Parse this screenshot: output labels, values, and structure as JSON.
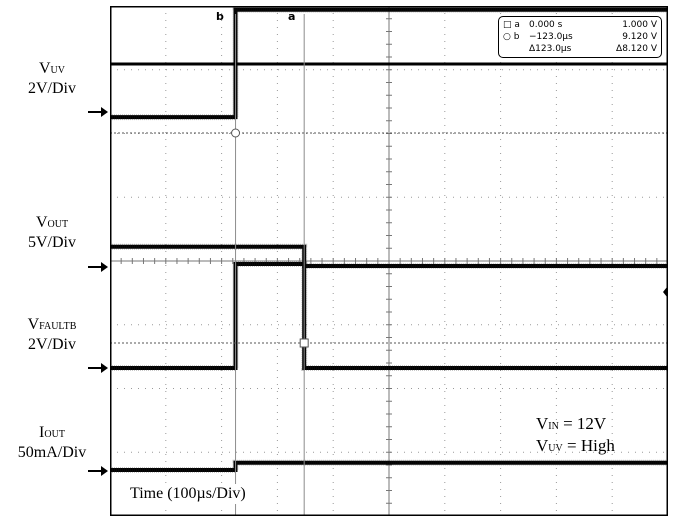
{
  "chart_data": {
    "type": "line",
    "title": "",
    "time_label": "Time (100µs/Div)",
    "x_unit": "µs",
    "x_per_div": 100,
    "xlim": [
      -225,
      775
    ],
    "y_divisions": 8,
    "grid": true,
    "channels": [
      {
        "name": "VUV",
        "name_main": "V",
        "name_sub": "UV",
        "scale": "2V/Div",
        "points": [
          [
            -225,
            1.7
          ],
          [
            0,
            1.7
          ],
          [
            0,
            4.6
          ],
          [
            775,
            4.6
          ]
        ]
      },
      {
        "name": "VOUT",
        "name_main": "V",
        "name_sub": "OUT",
        "scale": "5V/Div",
        "points": [
          [
            -225,
            1.2
          ],
          [
            123,
            1.2
          ],
          [
            123,
            0
          ],
          [
            775,
            0
          ]
        ]
      },
      {
        "name": "VFAULTB",
        "name_main": "V",
        "name_sub": "FAULTB",
        "scale": "2V/Div",
        "points": [
          [
            -225,
            0
          ],
          [
            0,
            0
          ],
          [
            0,
            5.2
          ],
          [
            123,
            5.2
          ],
          [
            123,
            0
          ],
          [
            775,
            0
          ]
        ]
      },
      {
        "name": "IOUT",
        "name_main": "I",
        "name_sub": "OUT",
        "scale": "50mA/Div",
        "points": [
          [
            -225,
            0
          ],
          [
            0,
            0
          ],
          [
            0,
            0.12
          ],
          [
            775,
            0.12
          ]
        ]
      }
    ],
    "cursor_labels": [
      "b",
      "a"
    ],
    "readout": {
      "rows": [
        {
          "cursor": "□ a",
          "time": "0.000 s",
          "value": "1.000 V"
        },
        {
          "cursor": "○ b",
          "time": "−123.0µs",
          "value": "9.120 V"
        },
        {
          "cursor": "",
          "time": "Δ123.0µs",
          "value": "Δ8.120 V"
        }
      ]
    },
    "conditions": [
      {
        "main": "V",
        "sub": "IN",
        "rest": " = 12V"
      },
      {
        "main": "V",
        "sub": "UV",
        "rest": " = High"
      }
    ]
  }
}
